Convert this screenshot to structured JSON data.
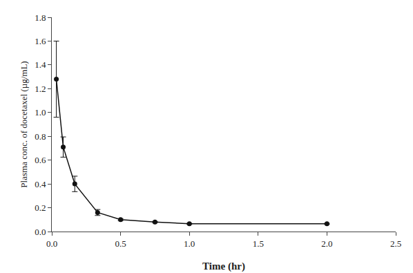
{
  "chart_data": {
    "type": "line",
    "x": [
      0.033,
      0.083,
      0.167,
      0.333,
      0.5,
      0.75,
      1.0,
      2.0
    ],
    "values": [
      1.28,
      0.71,
      0.4,
      0.16,
      0.1,
      0.08,
      0.065,
      0.065
    ],
    "yerr": [
      0.32,
      0.085,
      0.065,
      0.025,
      0.008,
      0.005,
      0.004,
      0.004
    ],
    "xlabel": "Time (hr)",
    "ylabel": "Plasma conc. of docetaxel (µg/mL)",
    "color": "#111111",
    "marker": "circle",
    "line_style": "solid",
    "xlim": [
      0,
      2.5
    ],
    "ylim": [
      0,
      1.8
    ],
    "xticks": [
      {
        "value": 0,
        "label": "0.0"
      },
      0.5,
      {
        "value": 1.0,
        "label": "1.0"
      },
      1.5,
      {
        "value": 2.0,
        "label": "2.0"
      },
      2.5
    ],
    "yticks": [
      {
        "value": 0,
        "label": "0.0"
      },
      0.2,
      0.4,
      0.6,
      0.8,
      {
        "value": 1.0,
        "label": "1.0"
      },
      1.2,
      1.4,
      1.6,
      1.8
    ],
    "grid": false
  }
}
